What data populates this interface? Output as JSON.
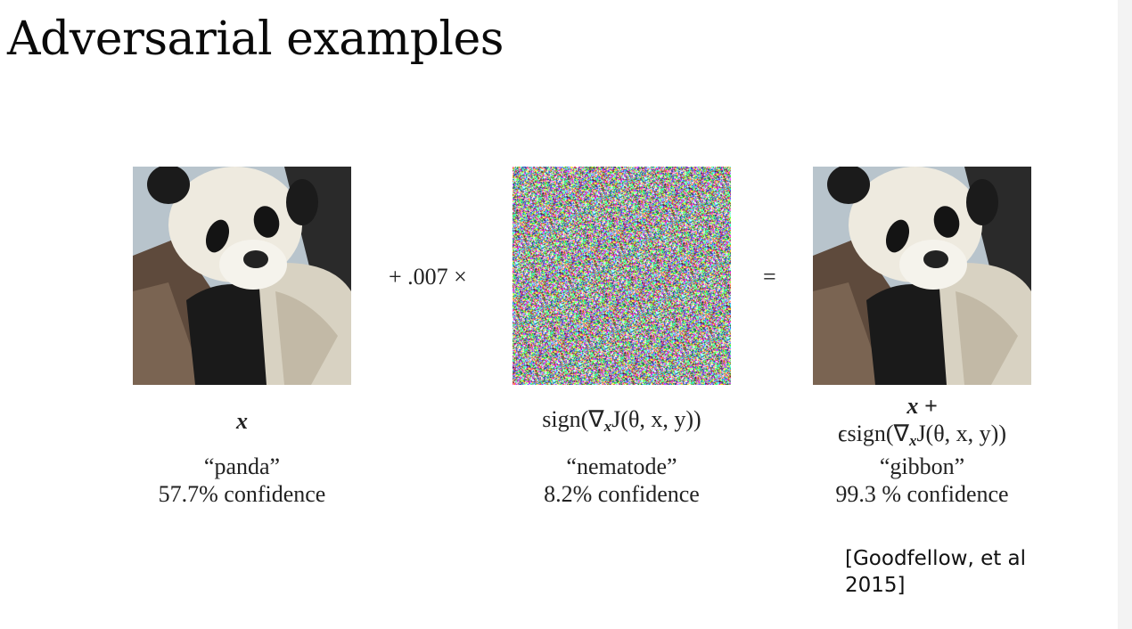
{
  "slide": {
    "title": "Adversarial examples",
    "citation_line1": "[Goodfellow, et al",
    "citation_line2": "2015]"
  },
  "equation": {
    "plus_operator": "+ .007 ×",
    "equals_operator": "="
  },
  "panels": [
    {
      "math_line1": "x",
      "label": "“panda”",
      "confidence": "57.7% confidence"
    },
    {
      "math_prefix": "sign(∇",
      "math_sub": "x",
      "math_suffix": "J(θ, x, y))",
      "label": "“nematode”",
      "confidence": "8.2% confidence"
    },
    {
      "math_line1": "x +",
      "math_line2_prefix": "ϵsign(∇",
      "math_line2_sub": "x",
      "math_line2_suffix": "J(θ, x, y))",
      "label": "“gibbon”",
      "confidence": "99.3 % confidence"
    }
  ]
}
